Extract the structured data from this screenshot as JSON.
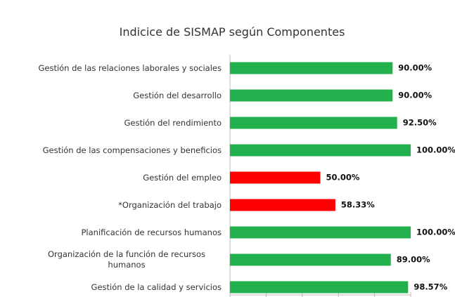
{
  "chart_data": {
    "type": "hbar",
    "title": "Indicice de SISMAP según Componentes",
    "categories": [
      "Gestión de las relaciones laborales y sociales",
      "Gestión del desarrollo",
      "Gestión del rendimiento",
      "Gestión de las compensaciones y beneficios",
      "Gestión del empleo",
      "*Organización del trabajo",
      "Planificación de recursos humanos",
      "Organización de la función de recursos humanos",
      "Gestión de la calidad y servicios"
    ],
    "values": [
      90,
      90,
      92.5,
      100,
      50,
      58.33,
      100,
      89,
      98.57
    ],
    "value_labels": [
      "90.00%",
      "90.00%",
      "92.50%",
      "100.00%",
      "50.00%",
      "58.33%",
      "100.00%",
      "89.00%",
      "98.57%"
    ],
    "colors": [
      "#22b14c",
      "#22b14c",
      "#22b14c",
      "#22b14c",
      "#ff0000",
      "#ff0000",
      "#22b14c",
      "#22b14c",
      "#22b14c"
    ],
    "xlim": [
      0,
      100
    ],
    "xticks": [
      0,
      20,
      40,
      60,
      80,
      100
    ]
  }
}
